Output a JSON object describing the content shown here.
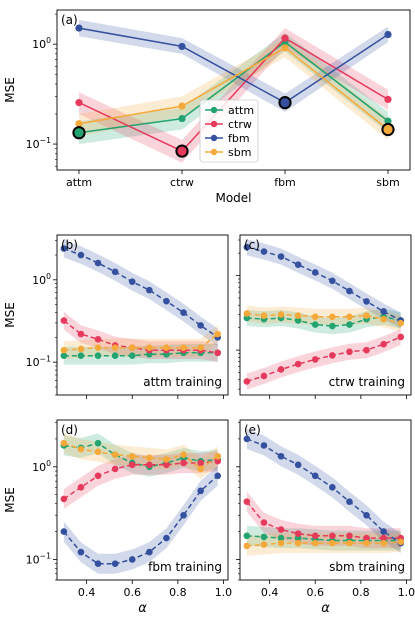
{
  "colors": {
    "attm": "#22a370",
    "ctrw": "#e63a5c",
    "fbm": "#34509e",
    "sbm": "#f5a93a"
  },
  "chart_data": [
    {
      "id": "a",
      "type": "line",
      "panel_label": "(a)",
      "xlabel": "Model",
      "ylabel": "MSE",
      "yscale": "log",
      "ylim": [
        0.055,
        2.2
      ],
      "categories": [
        "attm",
        "ctrw",
        "fbm",
        "sbm"
      ],
      "yticks": [
        {
          "value": 0.1,
          "base": "10",
          "exp": "−1"
        },
        {
          "value": 1,
          "base": "10",
          "exp": "0"
        }
      ],
      "legend": [
        "attm",
        "ctrw",
        "fbm",
        "sbm"
      ],
      "legend_position": "center",
      "series": [
        {
          "name": "attm",
          "values": [
            0.13,
            0.18,
            1.05,
            0.17
          ],
          "lower": [
            0.1,
            0.14,
            0.85,
            0.13
          ],
          "upper": [
            0.17,
            0.23,
            1.3,
            0.21
          ]
        },
        {
          "name": "ctrw",
          "values": [
            0.26,
            0.085,
            1.15,
            0.28
          ],
          "lower": [
            0.2,
            0.065,
            0.92,
            0.22
          ],
          "upper": [
            0.33,
            0.11,
            1.45,
            0.35
          ]
        },
        {
          "name": "fbm",
          "values": [
            1.45,
            0.95,
            0.26,
            1.25
          ],
          "lower": [
            1.2,
            0.8,
            0.21,
            1.05
          ],
          "upper": [
            1.75,
            1.15,
            0.32,
            1.5
          ]
        },
        {
          "name": "sbm",
          "values": [
            0.16,
            0.24,
            0.92,
            0.14
          ],
          "lower": [
            0.12,
            0.19,
            0.74,
            0.11
          ],
          "upper": [
            0.2,
            0.3,
            1.15,
            0.18
          ]
        }
      ],
      "highlighted": [
        {
          "series": "attm",
          "category": "attm"
        },
        {
          "series": "ctrw",
          "category": "ctrw"
        },
        {
          "series": "fbm",
          "category": "fbm"
        },
        {
          "series": "sbm",
          "category": "sbm"
        }
      ]
    },
    {
      "id": "b",
      "type": "line",
      "panel_label": "(b)",
      "annotation": "attm training",
      "ylabel": "MSE",
      "yscale": "log",
      "ylim": [
        0.04,
        3.5
      ],
      "xlim": [
        0.27,
        1.02
      ],
      "yticks": [
        {
          "value": 0.1,
          "base": "10",
          "exp": "−1"
        },
        {
          "value": 1,
          "base": "10",
          "exp": "0"
        }
      ],
      "xticks": [],
      "x": [
        0.3,
        0.375,
        0.45,
        0.525,
        0.6,
        0.675,
        0.75,
        0.825,
        0.9,
        0.975
      ],
      "series": [
        {
          "name": "attm",
          "values": [
            0.12,
            0.12,
            0.12,
            0.12,
            0.12,
            0.125,
            0.125,
            0.13,
            0.13,
            0.13
          ]
        },
        {
          "name": "ctrw",
          "values": [
            0.32,
            0.22,
            0.19,
            0.16,
            0.15,
            0.14,
            0.14,
            0.14,
            0.14,
            0.13
          ]
        },
        {
          "name": "fbm",
          "values": [
            2.4,
            2.0,
            1.6,
            1.25,
            0.95,
            0.75,
            0.55,
            0.4,
            0.28,
            0.2
          ]
        },
        {
          "name": "sbm",
          "values": [
            0.14,
            0.145,
            0.15,
            0.15,
            0.15,
            0.15,
            0.15,
            0.15,
            0.15,
            0.22
          ]
        }
      ]
    },
    {
      "id": "c",
      "type": "line",
      "panel_label": "(c)",
      "annotation": "ctrw training",
      "yscale": "log",
      "ylim": [
        0.025,
        3.5
      ],
      "xlim": [
        0.27,
        1.02
      ],
      "yticks": [],
      "xticks": [],
      "x": [
        0.3,
        0.375,
        0.45,
        0.525,
        0.6,
        0.675,
        0.75,
        0.825,
        0.9,
        0.975
      ],
      "series": [
        {
          "name": "attm",
          "values": [
            0.27,
            0.26,
            0.27,
            0.25,
            0.22,
            0.21,
            0.22,
            0.26,
            0.28,
            0.25
          ]
        },
        {
          "name": "ctrw",
          "values": [
            0.038,
            0.045,
            0.055,
            0.065,
            0.075,
            0.085,
            0.095,
            0.1,
            0.12,
            0.15
          ]
        },
        {
          "name": "fbm",
          "values": [
            2.4,
            2.1,
            1.8,
            1.4,
            1.1,
            0.85,
            0.62,
            0.45,
            0.33,
            0.25
          ]
        },
        {
          "name": "sbm",
          "values": [
            0.31,
            0.29,
            0.3,
            0.29,
            0.28,
            0.28,
            0.28,
            0.29,
            0.26,
            0.23
          ]
        }
      ]
    },
    {
      "id": "d",
      "type": "line",
      "panel_label": "(d)",
      "annotation": "fbm training",
      "xlabel": "α",
      "ylabel": "MSE",
      "yscale": "log",
      "ylim": [
        0.06,
        3.2
      ],
      "xlim": [
        0.27,
        1.02
      ],
      "yticks": [
        {
          "value": 0.1,
          "base": "10",
          "exp": "−1"
        },
        {
          "value": 1,
          "base": "10",
          "exp": "0"
        }
      ],
      "xticks": [
        "0.4",
        "0.6",
        "0.8",
        "1.0"
      ],
      "x": [
        0.3,
        0.375,
        0.45,
        0.525,
        0.6,
        0.675,
        0.75,
        0.825,
        0.9,
        0.975
      ],
      "series": [
        {
          "name": "attm",
          "values": [
            1.7,
            1.6,
            1.8,
            1.35,
            1.1,
            1.0,
            1.1,
            1.25,
            1.15,
            1.2
          ]
        },
        {
          "name": "ctrw",
          "values": [
            0.45,
            0.6,
            0.8,
            0.95,
            1.05,
            1.05,
            1.05,
            1.1,
            1.1,
            1.15
          ]
        },
        {
          "name": "fbm",
          "values": [
            0.2,
            0.12,
            0.09,
            0.09,
            0.1,
            0.12,
            0.17,
            0.3,
            0.55,
            0.8
          ]
        },
        {
          "name": "sbm",
          "values": [
            1.8,
            1.55,
            1.45,
            1.35,
            1.3,
            1.25,
            1.2,
            1.35,
            0.95,
            1.3
          ]
        }
      ]
    },
    {
      "id": "e",
      "type": "line",
      "panel_label": "(e)",
      "annotation": "sbm training",
      "xlabel": "α",
      "yscale": "log",
      "ylim": [
        0.06,
        3.2
      ],
      "xlim": [
        0.27,
        1.02
      ],
      "yticks": [],
      "xticks": [
        "0.4",
        "0.6",
        "0.8",
        "1.0"
      ],
      "x": [
        0.3,
        0.375,
        0.45,
        0.525,
        0.6,
        0.675,
        0.75,
        0.825,
        0.9,
        0.975
      ],
      "series": [
        {
          "name": "attm",
          "values": [
            0.18,
            0.175,
            0.17,
            0.17,
            0.165,
            0.16,
            0.16,
            0.16,
            0.16,
            0.16
          ]
        },
        {
          "name": "ctrw",
          "values": [
            0.42,
            0.25,
            0.21,
            0.19,
            0.18,
            0.18,
            0.18,
            0.17,
            0.17,
            0.17
          ]
        },
        {
          "name": "fbm",
          "values": [
            2.0,
            1.7,
            1.3,
            1.05,
            0.8,
            0.6,
            0.42,
            0.3,
            0.2,
            0.15
          ]
        },
        {
          "name": "sbm",
          "values": [
            0.14,
            0.145,
            0.15,
            0.15,
            0.15,
            0.15,
            0.15,
            0.15,
            0.15,
            0.155
          ]
        }
      ]
    }
  ]
}
